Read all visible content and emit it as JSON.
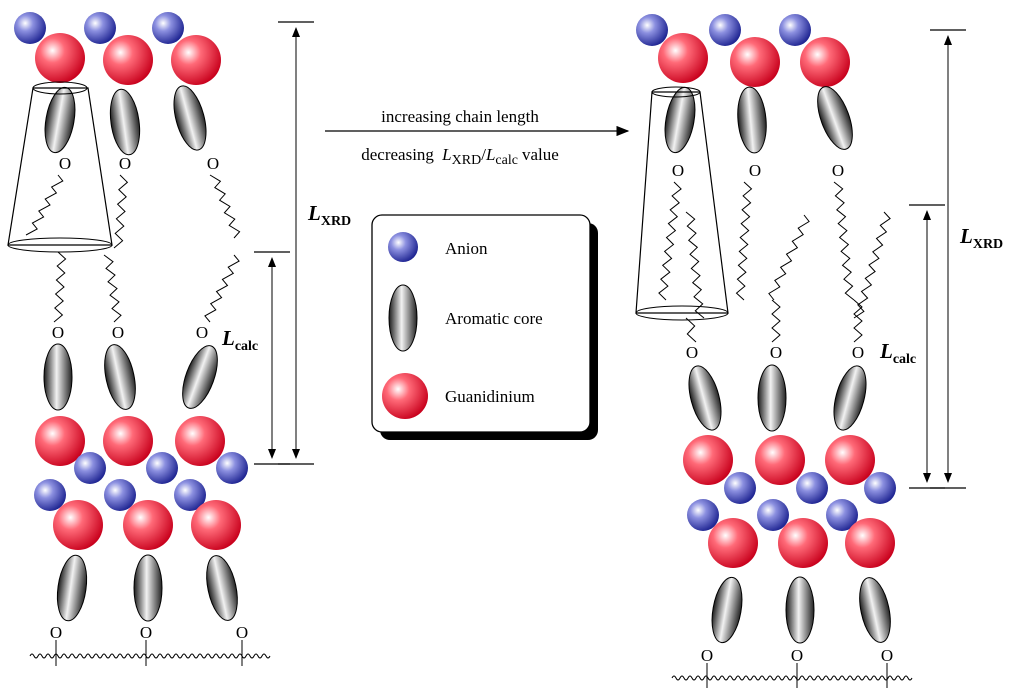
{
  "arrow": {
    "top": "increasing chain length",
    "bottom": {
      "prefix": "decreasing",
      "numerator": {
        "symbol": "L",
        "subscript": "XRD"
      },
      "separator": "/",
      "denominator": {
        "symbol": "L",
        "subscript": "calc"
      },
      "suffix": "value"
    }
  },
  "legend": {
    "items": [
      {
        "label": "Anion"
      },
      {
        "label": "Aromatic core"
      },
      {
        "label": "Guanidinium"
      }
    ]
  },
  "left": {
    "l_xrd": {
      "symbol": "L",
      "subscript": "XRD"
    },
    "l_calc": {
      "symbol": "L",
      "subscript": "calc"
    }
  },
  "right": {
    "l_xrd": {
      "symbol": "L",
      "subscript": "XRD"
    },
    "l_calc": {
      "symbol": "L",
      "subscript": "calc"
    }
  },
  "oxygen_label": "O"
}
